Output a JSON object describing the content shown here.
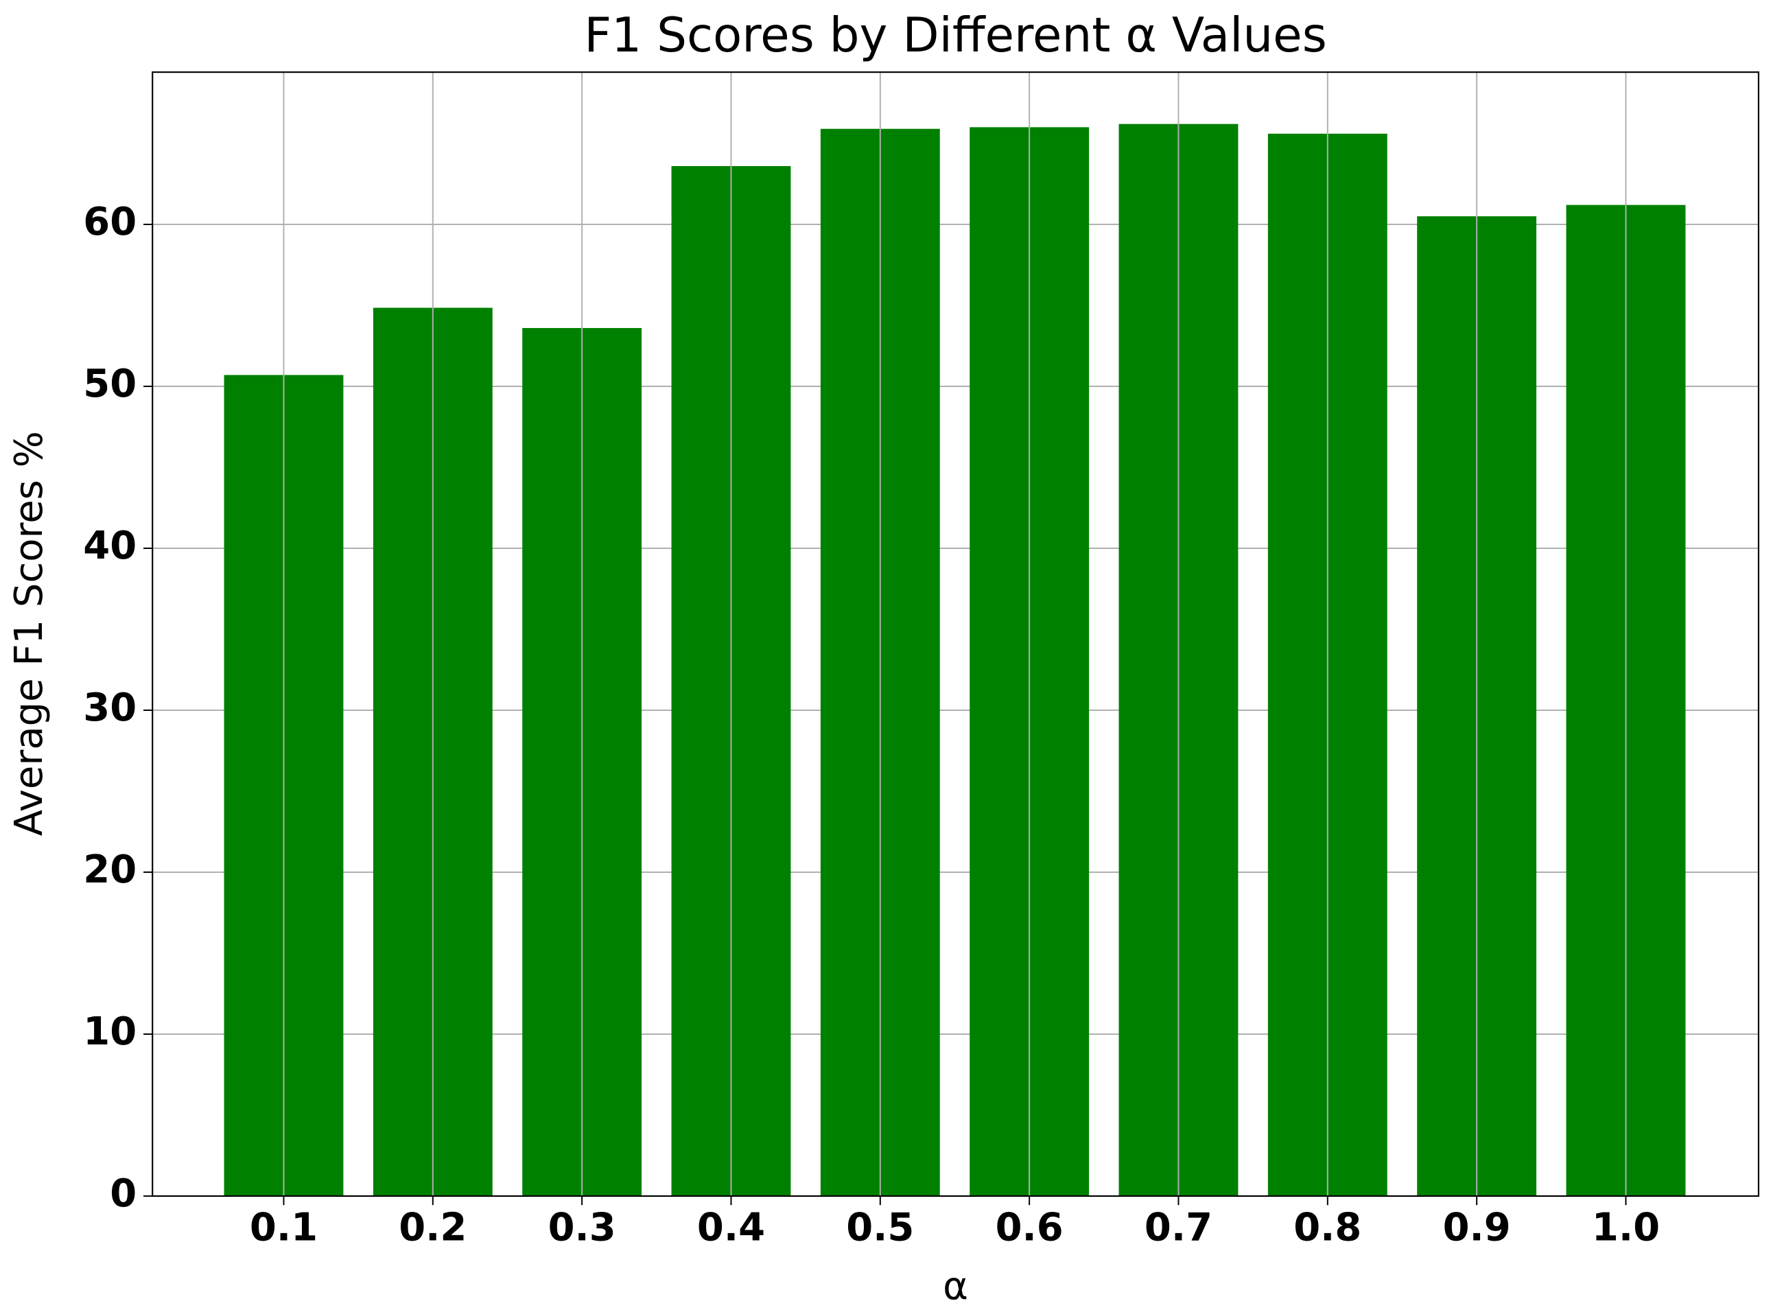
{
  "chart_data": {
    "type": "bar",
    "title": "F1 Scores by Different α Values",
    "x_label": "α",
    "y_label": "Average F1 Scores %",
    "categories": [
      "0.1",
      "0.2",
      "0.3",
      "0.4",
      "0.5",
      "0.6",
      "0.7",
      "0.8",
      "0.9",
      "1.0"
    ],
    "values": [
      50.7,
      54.85,
      53.6,
      63.6,
      65.9,
      66.0,
      66.2,
      65.6,
      60.5,
      61.2
    ],
    "color": "#008000",
    "ylim": [
      0,
      69.4
    ],
    "yticks": [
      0,
      10,
      20,
      30,
      40,
      50,
      60
    ],
    "grid": true
  }
}
